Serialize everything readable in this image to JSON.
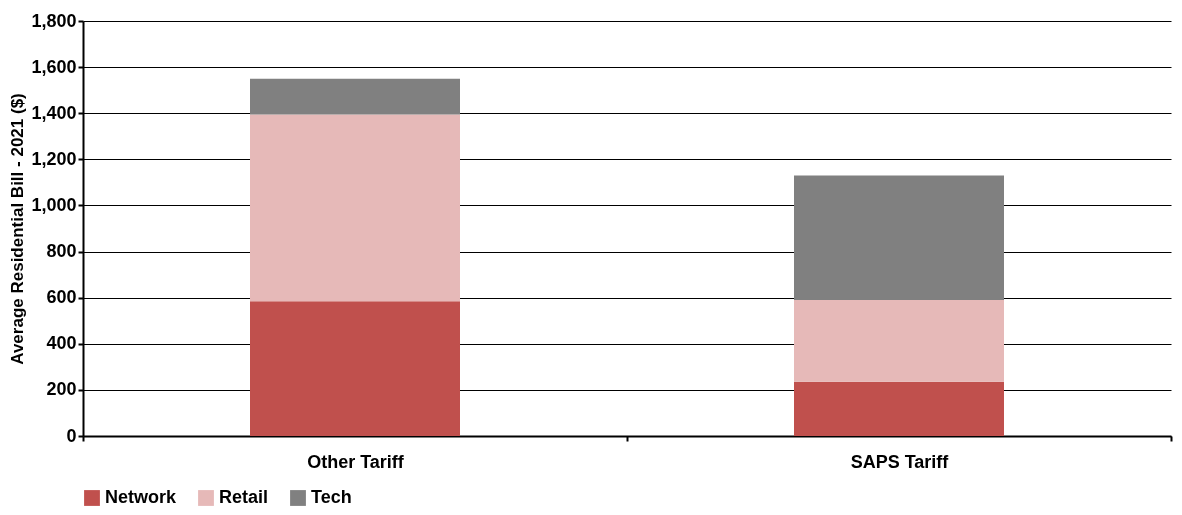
{
  "chart_data": {
    "type": "bar",
    "stacked": true,
    "ylabel": "Average Residential Bill - 2021 ($)",
    "categories": [
      "Other Tariff",
      "SAPS Tariff"
    ],
    "series": [
      {
        "name": "Network",
        "color": "#c0504d",
        "values": [
          585,
          235
        ]
      },
      {
        "name": "Retail",
        "color": "#e6b9b8",
        "values": [
          810,
          355
        ]
      },
      {
        "name": "Tech",
        "color": "#808080",
        "values": [
          155,
          540
        ]
      }
    ],
    "ylim": [
      0,
      1800
    ],
    "yticks": [
      {
        "value": 0,
        "label": "0"
      },
      {
        "value": 200,
        "label": "200"
      },
      {
        "value": 400,
        "label": "400"
      },
      {
        "value": 600,
        "label": "600"
      },
      {
        "value": 800,
        "label": "800"
      },
      {
        "value": 1000,
        "label": "1,000"
      },
      {
        "value": 1200,
        "label": "1,200"
      },
      {
        "value": 1400,
        "label": "1,400"
      },
      {
        "value": 1600,
        "label": "1,600"
      },
      {
        "value": 1800,
        "label": "1,800"
      }
    ],
    "grid": "y",
    "legend": "bottom"
  }
}
